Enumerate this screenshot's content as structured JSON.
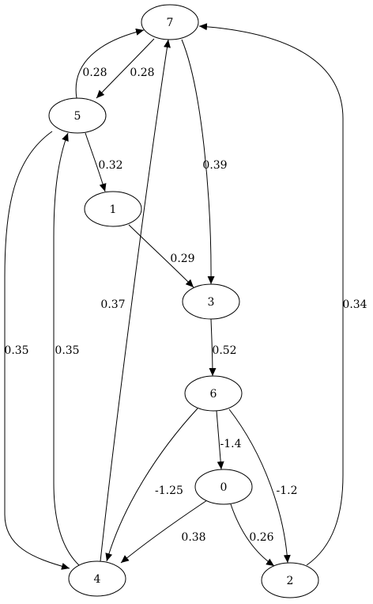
{
  "graph": {
    "nodes": [
      {
        "id": "7",
        "label": "7"
      },
      {
        "id": "5",
        "label": "5"
      },
      {
        "id": "1",
        "label": "1"
      },
      {
        "id": "3",
        "label": "3"
      },
      {
        "id": "6",
        "label": "6"
      },
      {
        "id": "0",
        "label": "0"
      },
      {
        "id": "4",
        "label": "4"
      },
      {
        "id": "2",
        "label": "2"
      }
    ],
    "edges": [
      {
        "from": "5",
        "to": "7",
        "label": "0.28"
      },
      {
        "from": "7",
        "to": "5",
        "label": "0.28"
      },
      {
        "from": "7",
        "to": "3",
        "label": "0.39"
      },
      {
        "from": "5",
        "to": "1",
        "label": "0.32"
      },
      {
        "from": "5",
        "to": "4",
        "label": "0.35"
      },
      {
        "from": "4",
        "to": "5",
        "label": "0.35"
      },
      {
        "from": "4",
        "to": "7",
        "label": "0.37"
      },
      {
        "from": "1",
        "to": "3",
        "label": "0.29"
      },
      {
        "from": "3",
        "to": "6",
        "label": "0.52"
      },
      {
        "from": "6",
        "to": "0",
        "label": "-1.4"
      },
      {
        "from": "6",
        "to": "4",
        "label": "-1.25"
      },
      {
        "from": "6",
        "to": "2",
        "label": "-1.2"
      },
      {
        "from": "0",
        "to": "4",
        "label": "0.38"
      },
      {
        "from": "0",
        "to": "2",
        "label": "0.26"
      },
      {
        "from": "2",
        "to": "7",
        "label": "0.34"
      }
    ]
  }
}
